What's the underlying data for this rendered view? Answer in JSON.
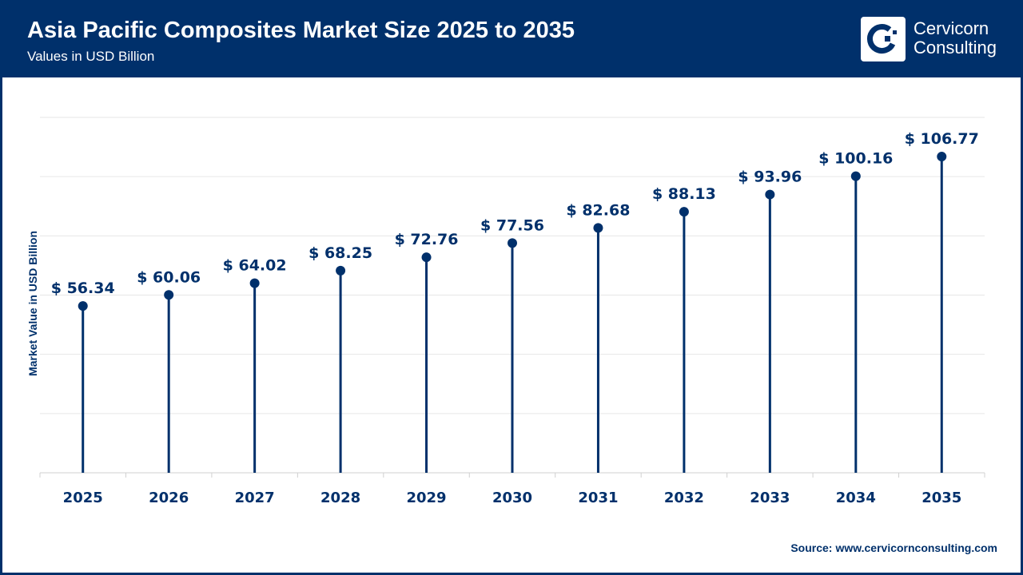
{
  "header": {
    "title": "Asia Pacific Composites Market Size 2025 to 2035",
    "subtitle": "Values in USD Billion"
  },
  "logo": {
    "line1": "Cervicorn",
    "line2": "Consulting"
  },
  "source": {
    "label": "Source:",
    "url": "www.cervicornconsulting.com"
  },
  "colors": {
    "primary": "#00306b",
    "grid": "#e6e6e6"
  },
  "chart_data": {
    "type": "lollipop",
    "title": "Asia Pacific Composites Market Size 2025 to 2035",
    "subtitle": "Values in USD Billion",
    "xlabel": "",
    "ylabel": "Market Value in USD Billion",
    "ylim": [
      0,
      120
    ],
    "grid": true,
    "categories": [
      "2025",
      "2026",
      "2027",
      "2028",
      "2029",
      "2030",
      "2031",
      "2032",
      "2033",
      "2034",
      "2035"
    ],
    "values": [
      56.34,
      60.06,
      64.02,
      68.25,
      72.76,
      77.56,
      82.68,
      88.13,
      93.96,
      100.16,
      106.77
    ],
    "data_labels": [
      "$ 56.34",
      "$ 60.06",
      "$ 64.02",
      "$ 68.25",
      "$ 72.76",
      "$ 77.56",
      "$ 82.68",
      "$ 88.13",
      "$ 93.96",
      "$ 100.16",
      "$ 106.77"
    ]
  }
}
